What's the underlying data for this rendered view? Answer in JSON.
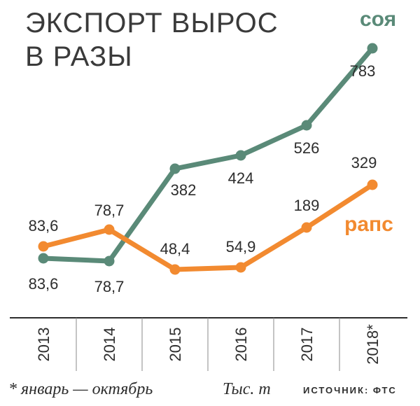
{
  "chart_data": {
    "type": "line",
    "title_lines": [
      "ЭКСПОРТ ВЫРОС",
      "В РАЗЫ"
    ],
    "categories": [
      "2013",
      "2014",
      "2015",
      "2016",
      "2017",
      "2018*"
    ],
    "series": [
      {
        "name": "соя",
        "color": "#5a8a78",
        "values": [
          83.6,
          78.7,
          382,
          424,
          526,
          783
        ],
        "labels": [
          "83,6",
          "78,7",
          "382",
          "424",
          "526",
          "783"
        ]
      },
      {
        "name": "рапс",
        "color": "#f28a30",
        "values": [
          83.6,
          78.7,
          48.4,
          54.9,
          189,
          329
        ],
        "labels": [
          "83,6",
          "78,7",
          "48,4",
          "54,9",
          "189",
          "329"
        ]
      }
    ],
    "grid": false,
    "legend": "inline"
  },
  "footer": {
    "footnote": "* январь — октябрь",
    "unit": "Тыс. т",
    "source": "ИСТОЧНИК: ФТС"
  }
}
